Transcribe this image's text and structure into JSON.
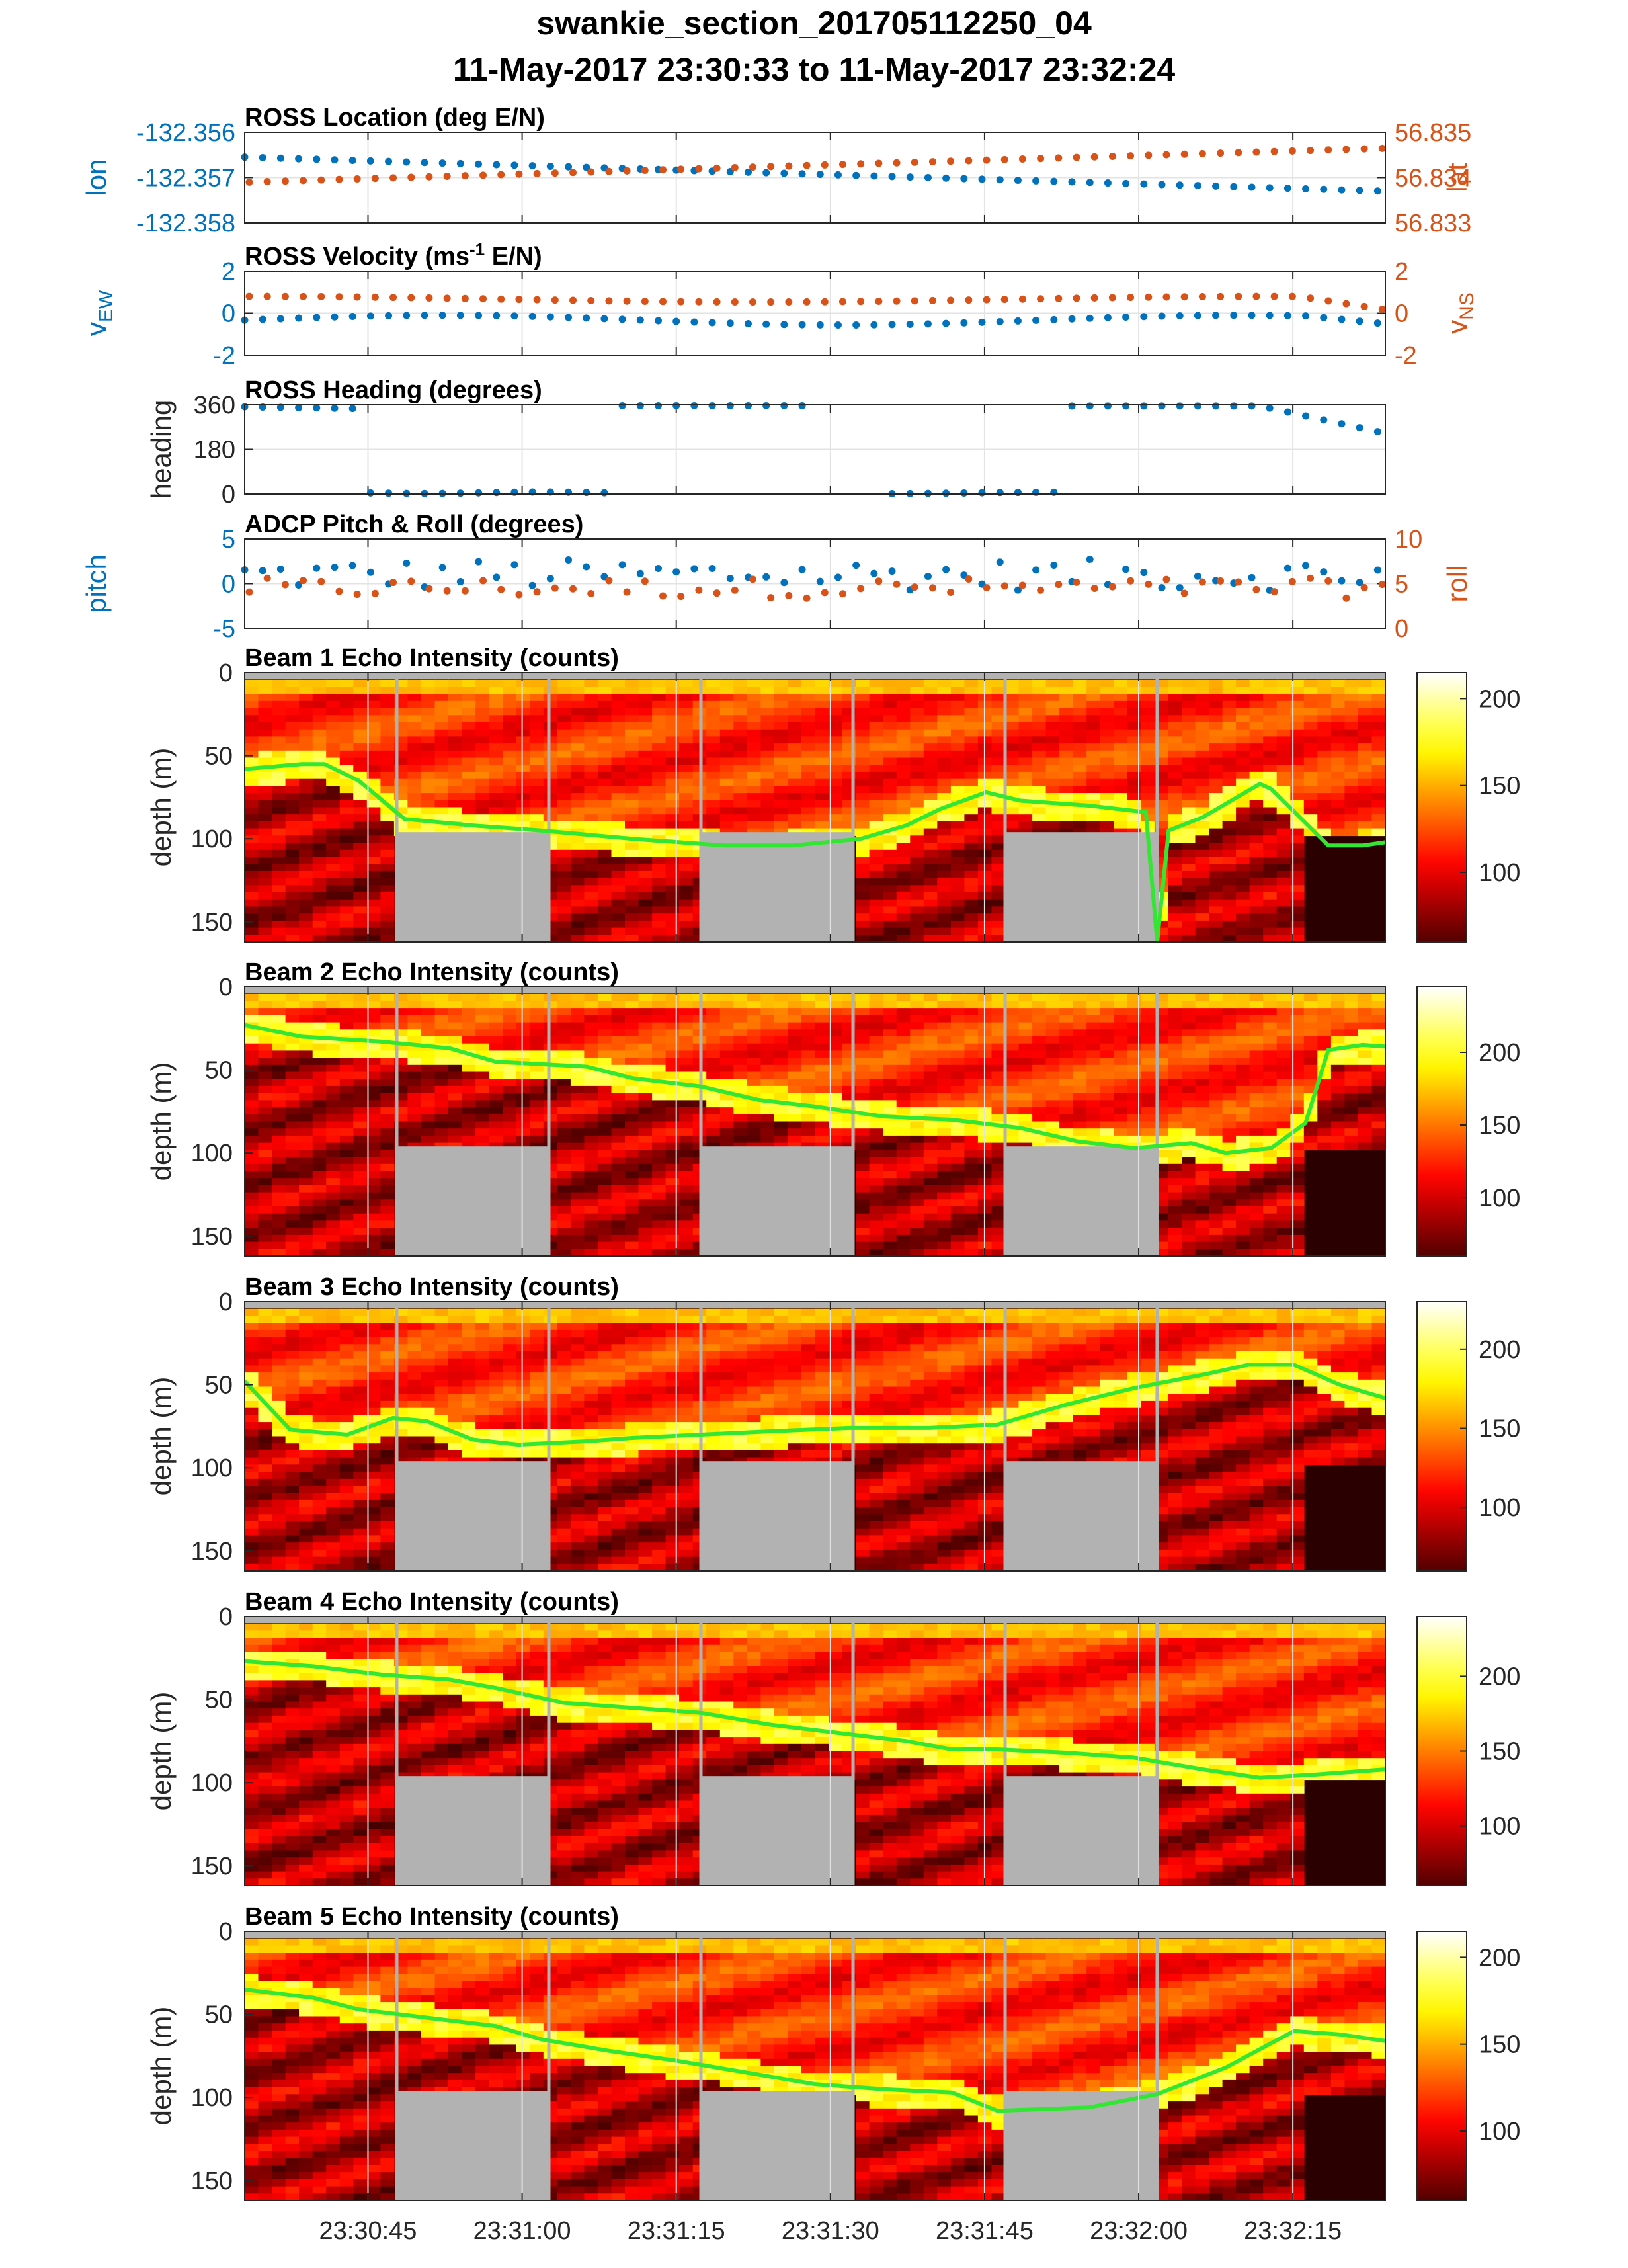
{
  "figure": {
    "title_line1": "swankie_section_201705112250_04",
    "title_line2": "11-May-2017 23:30:33 to 11-May-2017 23:32:24"
  },
  "colors": {
    "blue": "#0072BD",
    "orange": "#D95319",
    "green": "#33E633",
    "nodata": "#B2B2B2"
  },
  "chart_data": [
    {
      "id": "location",
      "type": "scatter",
      "title": "ROSS Location (deg E/N)",
      "ylabel_left": "lon",
      "ylabel_right": "lat",
      "yticks_left": [
        "-132.356",
        "-132.357",
        "-132.358"
      ],
      "yticks_right": [
        "56.835",
        "56.834",
        "56.833"
      ],
      "ylim_left": [
        -132.358,
        -132.356
      ],
      "ylim_right": [
        56.833,
        56.835
      ],
      "series": [
        {
          "axis": "left",
          "color": "blue",
          "start": -132.35655,
          "end": -132.3573
        },
        {
          "axis": "right",
          "color": "orange",
          "start": 56.8339,
          "end": 56.83465
        }
      ]
    },
    {
      "id": "velocity",
      "type": "scatter",
      "title": "ROSS Velocity (ms",
      "title_sup": "-1",
      "title_end": " E/N)",
      "ylabel_left": "v",
      "ylabel_left_sub": "EW",
      "ylabel_right": "v",
      "ylabel_right_sub": "NS",
      "yticks_left": [
        "2",
        "0",
        "-2"
      ],
      "yticks_right": [
        "2",
        "0",
        "-2"
      ],
      "ylim_left": [
        -3,
        3
      ],
      "ylim_right": [
        -3,
        3
      ],
      "series": [
        {
          "axis": "left",
          "color": "blue",
          "level": -0.5
        },
        {
          "axis": "right",
          "color": "orange",
          "level": 1.0
        }
      ]
    },
    {
      "id": "heading",
      "type": "scatter",
      "title": "ROSS Heading (degrees)",
      "ylabel_left": "heading",
      "yticks_left": [
        "360",
        "180",
        "0"
      ],
      "ylim_left": [
        0,
        360
      ],
      "series": [
        {
          "axis": "left",
          "color": "blue"
        }
      ]
    },
    {
      "id": "pitchroll",
      "type": "scatter",
      "title": "ADCP Pitch & Roll (degrees)",
      "ylabel_left": "pitch",
      "ylabel_right": "roll",
      "yticks_left": [
        "5",
        "0",
        "-5"
      ],
      "yticks_right": [
        "10",
        "5",
        "0"
      ],
      "ylim_left": [
        -5,
        5
      ],
      "ylim_right": [
        0,
        10
      ],
      "series": [
        {
          "axis": "left",
          "color": "blue",
          "level": 1.0
        },
        {
          "axis": "right",
          "color": "orange",
          "level": 4.5
        }
      ]
    },
    {
      "id": "beam1",
      "type": "heatmap",
      "title": "Beam 1 Echo Intensity (counts)",
      "ylabel": "depth (m)",
      "yticks": [
        "0",
        "50",
        "100",
        "150"
      ],
      "ylim": [
        0,
        162
      ],
      "cticks": [
        "200",
        "150",
        "100"
      ],
      "clim": [
        60,
        215
      ],
      "bottom": [
        [
          0,
          58
        ],
        [
          0.05,
          55
        ],
        [
          0.07,
          55
        ],
        [
          0.1,
          65
        ],
        [
          0.14,
          88
        ],
        [
          0.2,
          92
        ],
        [
          0.26,
          95
        ],
        [
          0.34,
          100
        ],
        [
          0.42,
          104
        ],
        [
          0.48,
          104
        ],
        [
          0.54,
          100
        ],
        [
          0.58,
          92
        ],
        [
          0.61,
          82
        ],
        [
          0.65,
          72
        ],
        [
          0.68,
          77
        ],
        [
          0.74,
          80
        ],
        [
          0.79,
          84
        ],
        [
          0.8,
          162
        ],
        [
          0.81,
          95
        ],
        [
          0.84,
          87
        ],
        [
          0.89,
          67
        ],
        [
          0.9,
          70
        ],
        [
          0.95,
          104
        ],
        [
          0.98,
          104
        ],
        [
          1,
          102
        ]
      ]
    },
    {
      "id": "beam2",
      "type": "heatmap",
      "title": "Beam 2 Echo Intensity (counts)",
      "ylabel": "depth (m)",
      "yticks": [
        "0",
        "50",
        "100",
        "150"
      ],
      "ylim": [
        0,
        162
      ],
      "cticks": [
        "200",
        "150",
        "100"
      ],
      "clim": [
        60,
        245
      ],
      "bottom": [
        [
          0,
          23
        ],
        [
          0.05,
          30
        ],
        [
          0.12,
          33
        ],
        [
          0.18,
          37
        ],
        [
          0.22,
          45
        ],
        [
          0.3,
          48
        ],
        [
          0.34,
          55
        ],
        [
          0.4,
          60
        ],
        [
          0.45,
          68
        ],
        [
          0.5,
          72
        ],
        [
          0.56,
          78
        ],
        [
          0.62,
          80
        ],
        [
          0.68,
          85
        ],
        [
          0.73,
          93
        ],
        [
          0.78,
          97
        ],
        [
          0.83,
          94
        ],
        [
          0.86,
          100
        ],
        [
          0.9,
          97
        ],
        [
          0.93,
          82
        ],
        [
          0.95,
          38
        ],
        [
          0.98,
          35
        ],
        [
          1,
          36
        ]
      ]
    },
    {
      "id": "beam3",
      "type": "heatmap",
      "title": "Beam 3 Echo Intensity (counts)",
      "ylabel": "depth (m)",
      "yticks": [
        "0",
        "50",
        "100",
        "150"
      ],
      "ylim": [
        0,
        162
      ],
      "cticks": [
        "200",
        "150",
        "100"
      ],
      "clim": [
        60,
        230
      ],
      "bottom": [
        [
          0,
          48
        ],
        [
          0.04,
          77
        ],
        [
          0.09,
          80
        ],
        [
          0.13,
          70
        ],
        [
          0.16,
          72
        ],
        [
          0.2,
          83
        ],
        [
          0.24,
          86
        ],
        [
          0.3,
          84
        ],
        [
          0.34,
          82
        ],
        [
          0.4,
          80
        ],
        [
          0.46,
          78
        ],
        [
          0.53,
          76
        ],
        [
          0.6,
          76
        ],
        [
          0.66,
          74
        ],
        [
          0.72,
          62
        ],
        [
          0.78,
          52
        ],
        [
          0.84,
          44
        ],
        [
          0.88,
          38
        ],
        [
          0.92,
          38
        ],
        [
          0.96,
          50
        ],
        [
          1,
          58
        ]
      ]
    },
    {
      "id": "beam4",
      "type": "heatmap",
      "title": "Beam 4 Echo Intensity (counts)",
      "ylabel": "depth (m)",
      "yticks": [
        "0",
        "50",
        "100",
        "150"
      ],
      "ylim": [
        0,
        162
      ],
      "cticks": [
        "200",
        "150",
        "100"
      ],
      "clim": [
        60,
        240
      ],
      "bottom": [
        [
          0,
          27
        ],
        [
          0.06,
          30
        ],
        [
          0.12,
          35
        ],
        [
          0.18,
          38
        ],
        [
          0.22,
          43
        ],
        [
          0.28,
          52
        ],
        [
          0.34,
          55
        ],
        [
          0.4,
          58
        ],
        [
          0.46,
          65
        ],
        [
          0.52,
          70
        ],
        [
          0.58,
          75
        ],
        [
          0.62,
          80
        ],
        [
          0.66,
          80
        ],
        [
          0.72,
          82
        ],
        [
          0.78,
          85
        ],
        [
          0.84,
          92
        ],
        [
          0.89,
          97
        ],
        [
          0.94,
          95
        ],
        [
          1,
          92
        ]
      ]
    },
    {
      "id": "beam5",
      "type": "heatmap",
      "title": "Beam 5 Echo Intensity (counts)",
      "ylabel": "depth (m)",
      "yticks": [
        "0",
        "50",
        "100",
        "150"
      ],
      "ylim": [
        0,
        162
      ],
      "cticks": [
        "200",
        "150",
        "100"
      ],
      "clim": [
        60,
        215
      ],
      "bottom": [
        [
          0,
          35
        ],
        [
          0.06,
          40
        ],
        [
          0.1,
          47
        ],
        [
          0.16,
          52
        ],
        [
          0.22,
          57
        ],
        [
          0.26,
          65
        ],
        [
          0.32,
          72
        ],
        [
          0.38,
          78
        ],
        [
          0.44,
          85
        ],
        [
          0.5,
          92
        ],
        [
          0.56,
          95
        ],
        [
          0.62,
          97
        ],
        [
          0.66,
          108
        ],
        [
          0.74,
          106
        ],
        [
          0.8,
          98
        ],
        [
          0.86,
          82
        ],
        [
          0.92,
          60
        ],
        [
          0.96,
          62
        ],
        [
          1,
          66
        ]
      ]
    }
  ],
  "xaxis": {
    "ticks": [
      "23:30:45",
      "23:31:00",
      "23:31:15",
      "23:31:30",
      "23:31:45",
      "23:32:00",
      "23:32:15"
    ],
    "tick_times": [
      45,
      60,
      75,
      90,
      105,
      120,
      135
    ],
    "start_time": 33,
    "end_time": 144
  }
}
